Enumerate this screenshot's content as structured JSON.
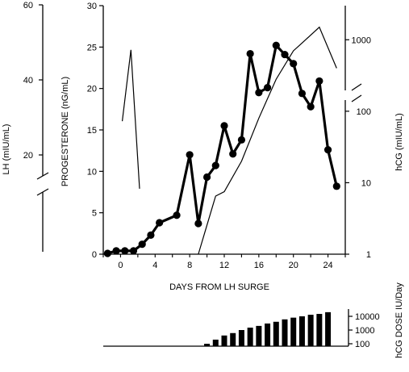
{
  "chart_data": {
    "type": "line",
    "xlabel": "DAYS FROM LH SURGE",
    "xlim": [
      -2,
      26
    ],
    "xticks": [
      0,
      4,
      8,
      12,
      16,
      20,
      24
    ],
    "progesterone_axis": {
      "label": "PROGESTERONE (nG/mL)",
      "ylim": [
        0,
        30
      ],
      "ticks": [
        0,
        5,
        10,
        15,
        20,
        25,
        30
      ]
    },
    "lh_axis": {
      "label": "LH (mIU/mL)",
      "ticks": [
        20,
        40,
        60
      ]
    },
    "hcg_axis": {
      "label": "hCG (mIU/mL)",
      "scale": "log",
      "ylim": [
        1,
        3000
      ],
      "ticks": [
        1,
        10,
        100,
        1000
      ],
      "tick_labels": [
        "1",
        "10",
        "100",
        "1000"
      ]
    },
    "dose_axis": {
      "label": "hCG DOSE IU/Day",
      "scale": "log",
      "ticks": [
        100,
        1000,
        10000
      ],
      "tick_labels": [
        "100",
        "1000",
        "10000"
      ]
    },
    "series": [
      {
        "axis": "progesterone",
        "style": "filled-dots",
        "x": [
          -1.5,
          -0.5,
          0.5,
          1.5,
          2.5,
          3.5,
          4.5,
          6.5,
          8,
          9,
          10,
          11,
          12,
          13,
          14,
          15,
          16,
          17,
          18,
          19,
          20,
          21,
          22,
          23,
          24,
          25
        ],
        "values": [
          0.1,
          0.4,
          0.4,
          0.4,
          1.2,
          2.3,
          3.8,
          4.7,
          12,
          3.7,
          9.3,
          10.7,
          15.5,
          12.1,
          13.8,
          24.2,
          19.5,
          20.1,
          25.2,
          24.1,
          23,
          19.4,
          17.8,
          20.9,
          12.6,
          8.2
        ]
      },
      {
        "axis": "lh",
        "style": "thin-line",
        "x": [
          0.2,
          1.2,
          2.2
        ],
        "values": [
          29,
          48,
          11
        ]
      },
      {
        "axis": "hcg",
        "style": "thin-line",
        "x": [
          9,
          11,
          12,
          14,
          16,
          18,
          20,
          21,
          23,
          25
        ],
        "values": [
          1,
          6.5,
          7.5,
          20,
          80,
          280,
          700,
          900,
          1500,
          400
        ]
      },
      {
        "axis": "dose",
        "style": "bars",
        "x": [
          9,
          10,
          11,
          12,
          13,
          14,
          15,
          16,
          17,
          18,
          19,
          20,
          21,
          22,
          23,
          24
        ],
        "values": [
          50,
          100,
          200,
          400,
          600,
          1000,
          1500,
          2000,
          3000,
          4000,
          6000,
          8000,
          10000,
          13000,
          15000,
          20000
        ]
      }
    ]
  }
}
